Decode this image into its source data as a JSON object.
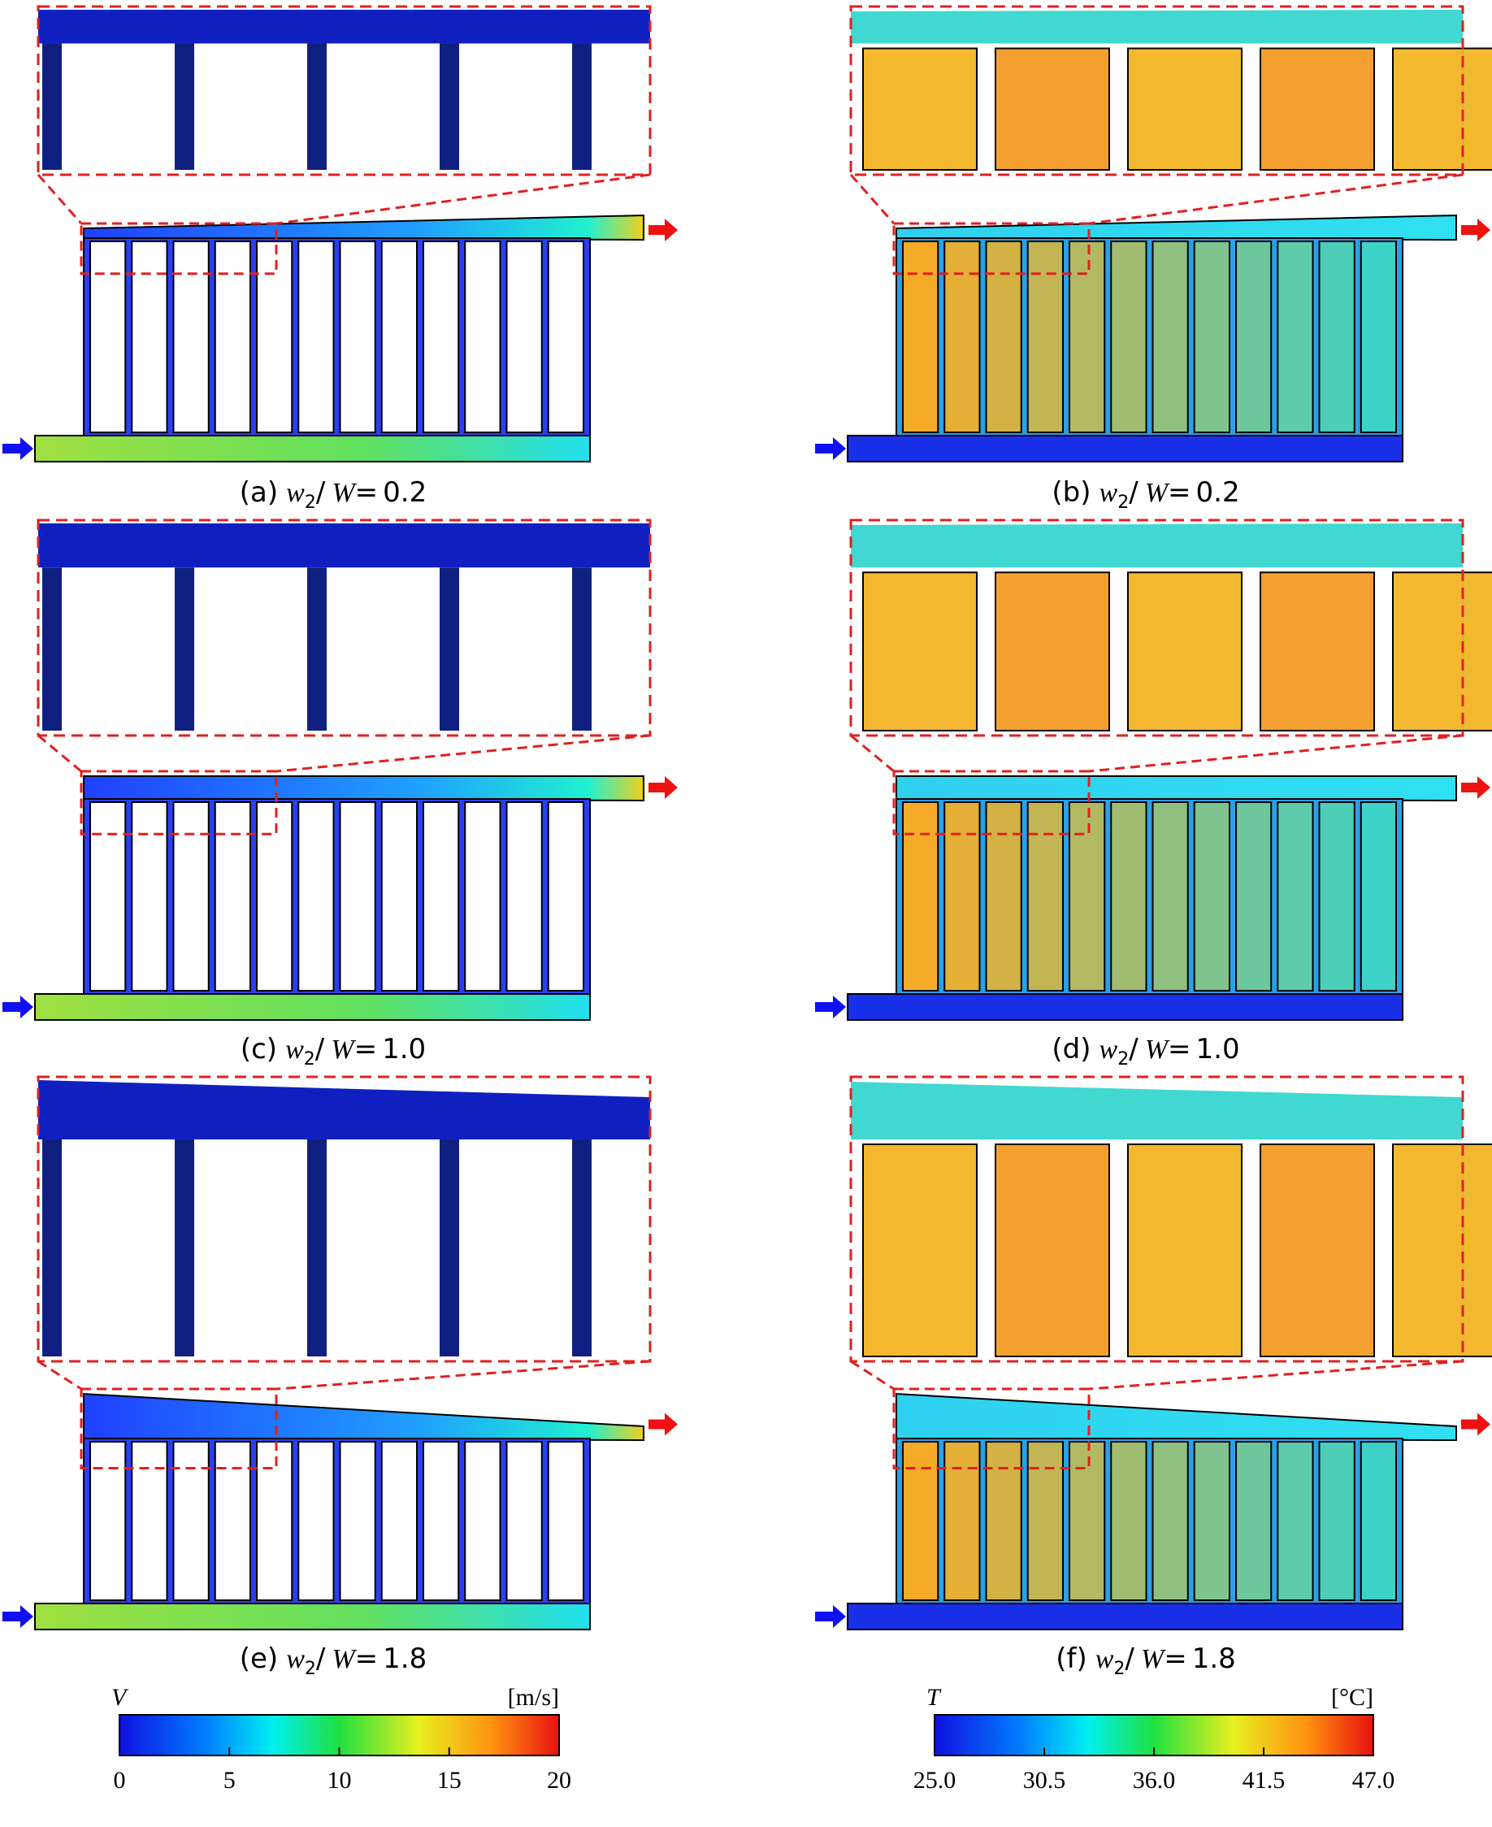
{
  "panels": [
    {
      "label": "(a)",
      "var1": "w",
      "sub": "2",
      "slash": "/",
      "var2": "W",
      "eq": "=",
      "value": "0.2"
    },
    {
      "label": "(b)",
      "var1": "w",
      "sub": "2",
      "slash": "/",
      "var2": "W",
      "eq": "=",
      "value": "0.2"
    },
    {
      "label": "(c)",
      "var1": "w",
      "sub": "2",
      "slash": "/",
      "var2": "W",
      "eq": "=",
      "value": "1.0"
    },
    {
      "label": "(d)",
      "var1": "w",
      "sub": "2",
      "slash": "/",
      "var2": "W",
      "eq": "=",
      "value": "1.0"
    },
    {
      "label": "(e)",
      "var1": "w",
      "sub": "2",
      "slash": "/",
      "var2": "W",
      "eq": "=",
      "value": "1.8"
    },
    {
      "label": "(f)",
      "var1": "w",
      "sub": "2",
      "slash": "/",
      "var2": "W",
      "eq": "=",
      "value": "1.8"
    }
  ],
  "colorbars": [
    {
      "symbol": "V",
      "unit": "[m/s]",
      "ticks": [
        "0",
        "5",
        "10",
        "15",
        "20"
      ]
    },
    {
      "symbol": "T",
      "unit": "[°C]",
      "ticks": [
        "25.0",
        "30.5",
        "36.0",
        "41.5",
        "47.0"
      ]
    }
  ]
}
